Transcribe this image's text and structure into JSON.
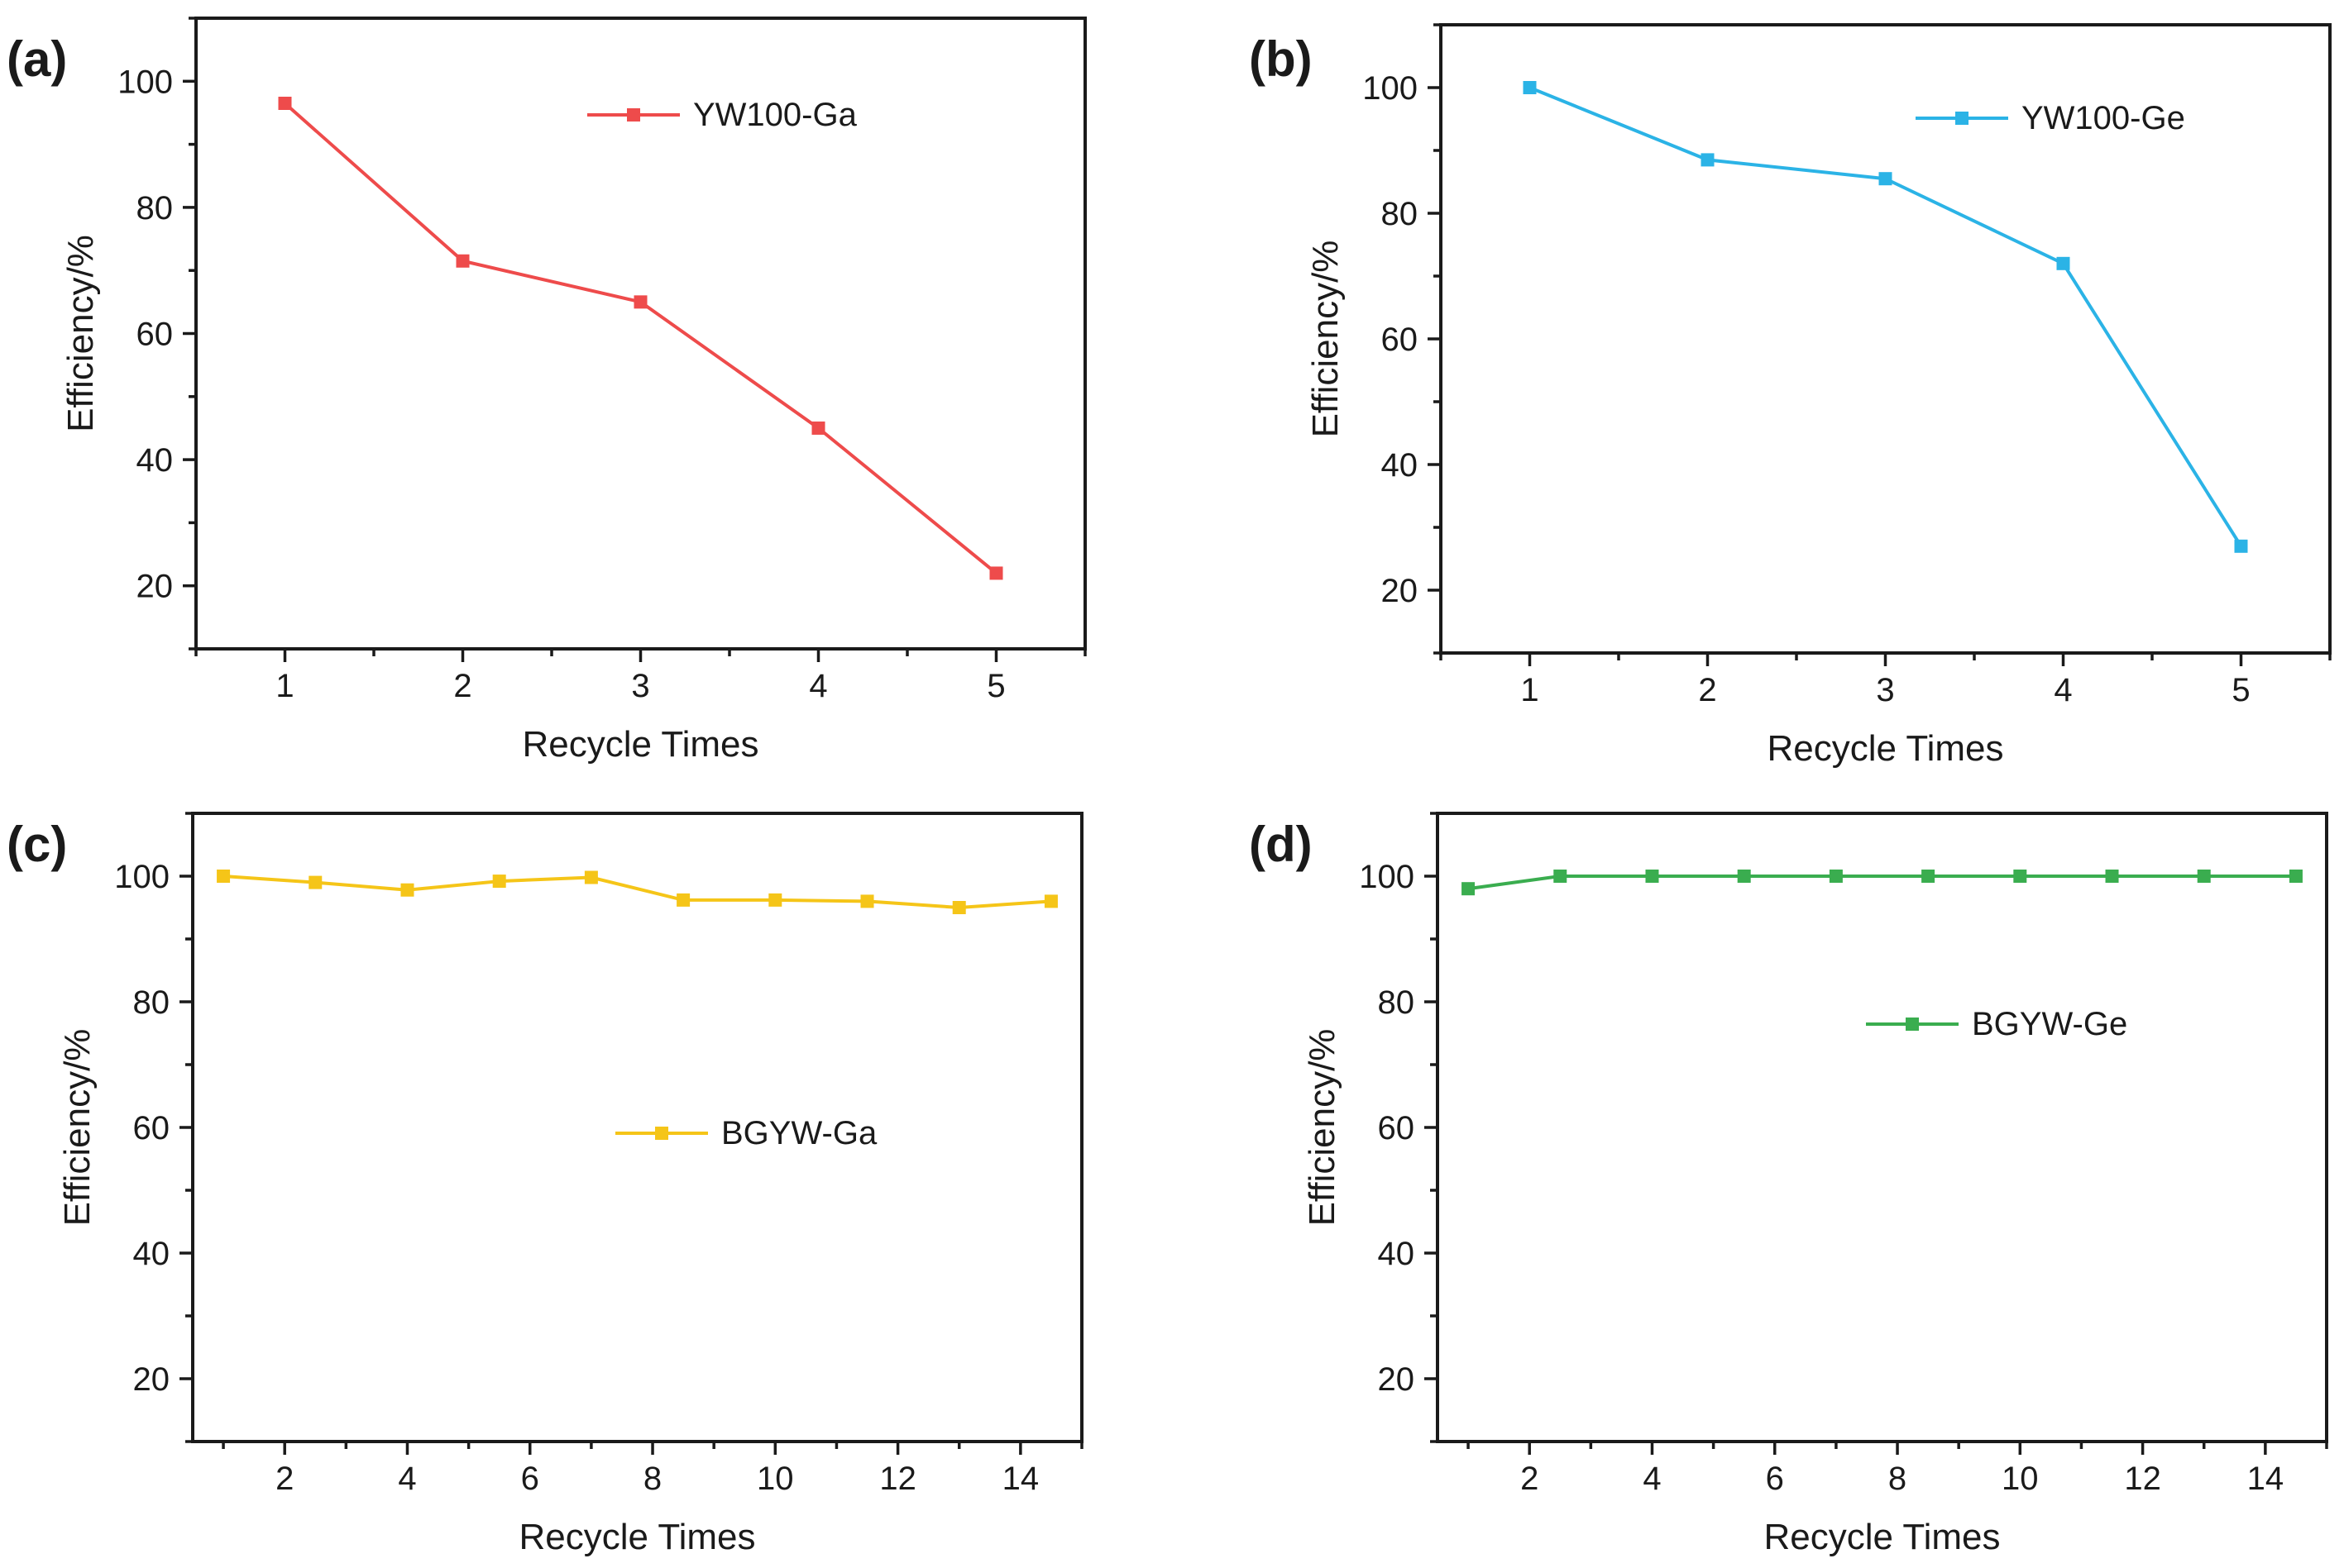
{
  "chart_data": [
    {
      "panel": "(a)",
      "type": "line",
      "xlabel": "Recycle Times",
      "ylabel": "Efficiency/%",
      "xlim": [
        0.5,
        5.5
      ],
      "ylim": [
        10,
        110
      ],
      "xticks": [
        1,
        2,
        3,
        4,
        5
      ],
      "yticks": [
        20,
        40,
        60,
        80,
        100
      ],
      "legend_position": "top-right",
      "series": [
        {
          "name": "YW100-Ga",
          "color": "#ee4b4b",
          "x": [
            1,
            2,
            3,
            4,
            5
          ],
          "values": [
            96.5,
            71.5,
            65,
            45,
            22
          ]
        }
      ]
    },
    {
      "panel": "(b)",
      "type": "line",
      "xlabel": "Recycle Times",
      "ylabel": "Efficiency/%",
      "xlim": [
        0.5,
        5.5
      ],
      "ylim": [
        10,
        110
      ],
      "xticks": [
        1,
        2,
        3,
        4,
        5
      ],
      "yticks": [
        20,
        40,
        60,
        80,
        100
      ],
      "legend_position": "top-right",
      "series": [
        {
          "name": "YW100-Ge",
          "color": "#2bb3e6",
          "x": [
            1,
            2,
            3,
            4,
            5
          ],
          "values": [
            100,
            88.5,
            85.5,
            72,
            27
          ]
        }
      ]
    },
    {
      "panel": "(c)",
      "type": "line",
      "xlabel": "Recycle Times",
      "ylabel": "Efficiency/%",
      "xlim": [
        0.5,
        15
      ],
      "ylim": [
        10,
        110
      ],
      "xticks": [
        2,
        4,
        6,
        8,
        10,
        12,
        14
      ],
      "yticks": [
        20,
        40,
        60,
        80,
        100
      ],
      "legend_position": "center-right",
      "series": [
        {
          "name": "BGYW-Ga",
          "color": "#f5c518",
          "x": [
            1,
            2.5,
            4,
            5.5,
            7,
            8.5,
            10,
            11.5,
            13,
            14.5
          ],
          "values": [
            100,
            99,
            97.8,
            99.2,
            99.8,
            96.2,
            96.2,
            96,
            95,
            96
          ]
        }
      ]
    },
    {
      "panel": "(d)",
      "type": "line",
      "xlabel": "Recycle Times",
      "ylabel": "Efficiency/%",
      "xlim": [
        0.5,
        15
      ],
      "ylim": [
        10,
        110
      ],
      "xticks": [
        2,
        4,
        6,
        8,
        10,
        12,
        14
      ],
      "yticks": [
        20,
        40,
        60,
        80,
        100
      ],
      "legend_position": "upper-center-right",
      "series": [
        {
          "name": "BGYW-Ge",
          "color": "#3aad4f",
          "x": [
            1,
            2.5,
            4,
            5.5,
            7,
            8.5,
            10,
            11.5,
            13,
            14.5
          ],
          "values": [
            98,
            100,
            100,
            100,
            100,
            100,
            100,
            100,
            100,
            100
          ]
        }
      ]
    }
  ]
}
